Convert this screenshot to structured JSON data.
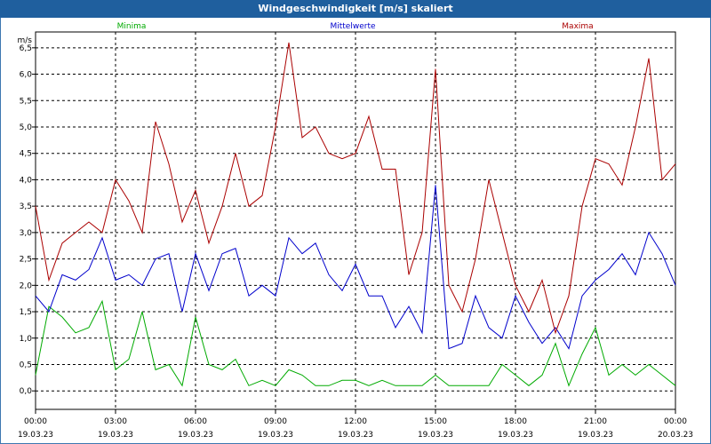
{
  "window": {
    "title": "Windgeschwindigkeit [m/s] skaliert"
  },
  "legend": [
    "Minima",
    "Mittelwerte",
    "Maxima"
  ],
  "chart_data": {
    "type": "line",
    "title": "Windgeschwindigkeit [m/s] skaliert",
    "ylabel": "m/s",
    "xlabel": "",
    "ylim": [
      -0.35,
      6.8
    ],
    "xlim": [
      0,
      24
    ],
    "grid": true,
    "legend_position": "top",
    "y_ticks": [
      "0,0",
      "0,5",
      "1,0",
      "1,5",
      "2,0",
      "2,5",
      "3,0",
      "3,5",
      "4,0",
      "4,5",
      "5,0",
      "5,5",
      "6,0",
      "6,5"
    ],
    "y_tick_values": [
      0,
      0.5,
      1,
      1.5,
      2,
      2.5,
      3,
      3.5,
      4,
      4.5,
      5,
      5.5,
      6,
      6.5
    ],
    "x_ticks": [
      {
        "time": "00:00",
        "date": "19.03.23"
      },
      {
        "time": "03:00",
        "date": "19.03.23"
      },
      {
        "time": "06:00",
        "date": "19.03.23"
      },
      {
        "time": "09:00",
        "date": "19.03.23"
      },
      {
        "time": "12:00",
        "date": "19.03.23"
      },
      {
        "time": "15:00",
        "date": "19.03.23"
      },
      {
        "time": "18:00",
        "date": "19.03.23"
      },
      {
        "time": "21:00",
        "date": "19.03.23"
      },
      {
        "time": "00:00",
        "date": "20.03.23"
      }
    ],
    "x_tick_hours": [
      0,
      3,
      6,
      9,
      12,
      15,
      18,
      21,
      24
    ],
    "series": [
      {
        "name": "Minima",
        "color": "#00aa00",
        "x": [
          0,
          0.5,
          1,
          1.5,
          2,
          2.5,
          3,
          3.5,
          4,
          4.5,
          5,
          5.5,
          6,
          6.5,
          7,
          7.5,
          8,
          8.5,
          9,
          9.5,
          10,
          10.5,
          11,
          11.5,
          12,
          12.5,
          13,
          13.5,
          14,
          14.5,
          15,
          15.5,
          16,
          16.5,
          17,
          17.5,
          18,
          18.5,
          19,
          19.5,
          20,
          20.5,
          21,
          21.5,
          22,
          22.5,
          23,
          23.5,
          24
        ],
        "values": [
          0.3,
          1.6,
          1.4,
          1.1,
          1.2,
          1.7,
          0.4,
          0.6,
          1.5,
          0.4,
          0.5,
          0.1,
          1.4,
          0.5,
          0.4,
          0.6,
          0.1,
          0.2,
          0.1,
          0.4,
          0.3,
          0.1,
          0.1,
          0.2,
          0.2,
          0.1,
          0.2,
          0.1,
          0.1,
          0.1,
          0.3,
          0.1,
          0.1,
          0.1,
          0.1,
          0.5,
          0.3,
          0.1,
          0.3,
          0.9,
          0.1,
          0.7,
          1.2,
          0.3,
          0.5,
          0.3,
          0.5,
          0.3,
          0.1
        ]
      },
      {
        "name": "Mittelwerte",
        "color": "#0000cc",
        "x": [
          0,
          0.5,
          1,
          1.5,
          2,
          2.5,
          3,
          3.5,
          4,
          4.5,
          5,
          5.5,
          6,
          6.5,
          7,
          7.5,
          8,
          8.5,
          9,
          9.5,
          10,
          10.5,
          11,
          11.5,
          12,
          12.5,
          13,
          13.5,
          14,
          14.5,
          15,
          15.5,
          16,
          16.5,
          17,
          17.5,
          18,
          18.5,
          19,
          19.5,
          20,
          20.5,
          21,
          21.5,
          22,
          22.5,
          23,
          23.5,
          24
        ],
        "values": [
          1.8,
          1.5,
          2.2,
          2.1,
          2.3,
          2.9,
          2.1,
          2.2,
          2.0,
          2.5,
          2.6,
          1.5,
          2.6,
          1.9,
          2.6,
          2.7,
          1.8,
          2.0,
          1.8,
          2.9,
          2.6,
          2.8,
          2.2,
          1.9,
          2.4,
          1.8,
          1.8,
          1.2,
          1.6,
          1.1,
          3.9,
          0.8,
          0.9,
          1.8,
          1.2,
          1.0,
          1.8,
          1.3,
          0.9,
          1.2,
          0.8,
          1.8,
          2.1,
          2.3,
          2.6,
          2.2,
          3.0,
          2.6,
          2.0
        ]
      },
      {
        "name": "Maxima",
        "color": "#aa0000",
        "x": [
          0,
          0.5,
          1,
          1.5,
          2,
          2.5,
          3,
          3.5,
          4,
          4.5,
          5,
          5.5,
          6,
          6.5,
          7,
          7.5,
          8,
          8.5,
          9,
          9.5,
          10,
          10.5,
          11,
          11.5,
          12,
          12.5,
          13,
          13.5,
          14,
          14.5,
          15,
          15.5,
          16,
          16.5,
          17,
          17.5,
          18,
          18.5,
          19,
          19.5,
          20,
          20.5,
          21,
          21.5,
          22,
          22.5,
          23,
          23.5,
          24
        ],
        "values": [
          3.5,
          2.1,
          2.8,
          3.0,
          3.2,
          3.0,
          4.0,
          3.6,
          3.0,
          5.1,
          4.3,
          3.2,
          3.8,
          2.8,
          3.5,
          4.5,
          3.5,
          3.7,
          5.0,
          6.6,
          4.8,
          5.0,
          4.5,
          4.4,
          4.5,
          5.2,
          4.2,
          4.2,
          2.2,
          3.0,
          6.1,
          2.0,
          1.5,
          2.5,
          4.0,
          3.0,
          2.0,
          1.5,
          2.1,
          1.1,
          1.8,
          3.5,
          4.4,
          4.3,
          3.9,
          5.0,
          6.3,
          4.0,
          4.3
        ]
      }
    ]
  }
}
